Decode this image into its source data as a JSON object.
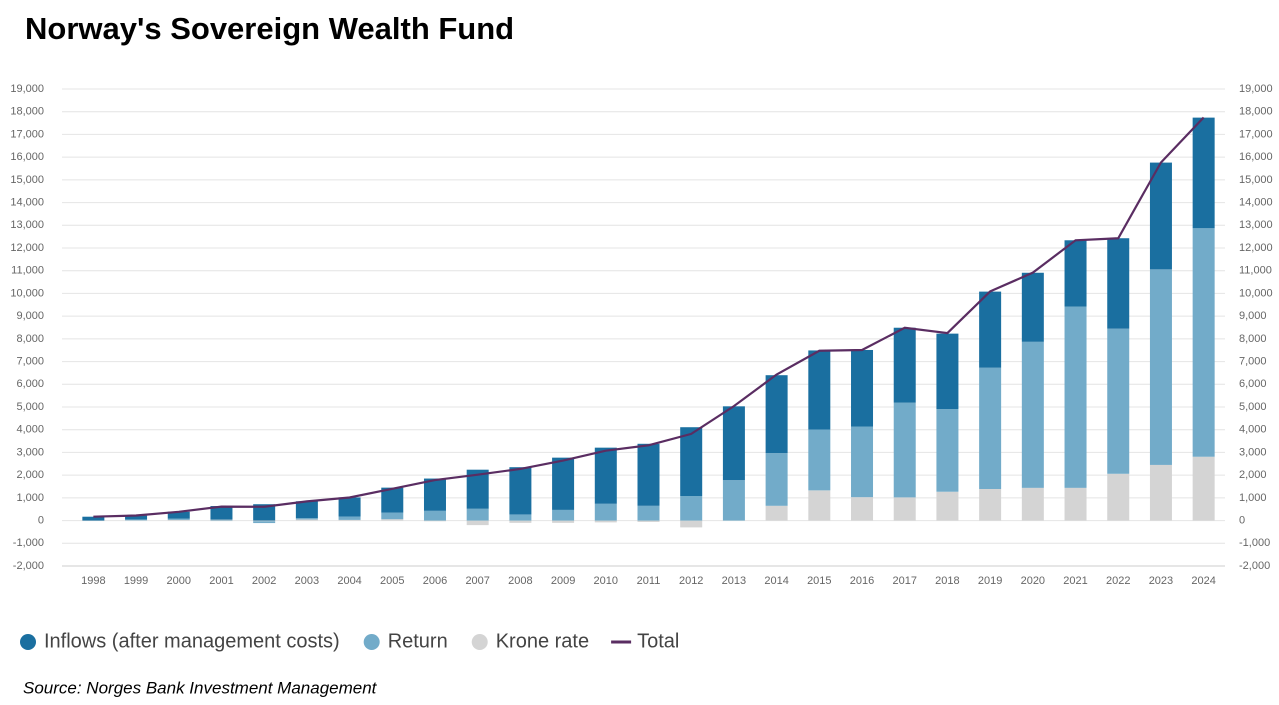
{
  "chart_data": {
    "type": "stacked-bar-line",
    "title": "Norway's Sovereign Wealth Fund",
    "source": "Source: Norges Bank Investment Management",
    "categories": [
      "1998",
      "1999",
      "2000",
      "2001",
      "2002",
      "2003",
      "2004",
      "2005",
      "2006",
      "2007",
      "2008",
      "2009",
      "2010",
      "2011",
      "2012",
      "2013",
      "2014",
      "2015",
      "2016",
      "2017",
      "2018",
      "2019",
      "2020",
      "2021",
      "2022",
      "2023",
      "2024"
    ],
    "series": [
      {
        "name": "Krone rate",
        "color": "#d4d4d4",
        "values": [
          0,
          10,
          30,
          40,
          -30,
          50,
          30,
          60,
          -30,
          -200,
          -100,
          -100,
          -80,
          -60,
          -300,
          0,
          650,
          1330,
          1030,
          1020,
          1270,
          1390,
          1440,
          1440,
          2060,
          2450,
          2810
        ]
      },
      {
        "name": "Return",
        "color": "#72abc9",
        "values": [
          0,
          40,
          60,
          -20,
          -80,
          60,
          150,
          290,
          430,
          520,
          270,
          470,
          740,
          650,
          1080,
          1780,
          2320,
          2680,
          3110,
          4170,
          3640,
          5340,
          6430,
          7980,
          6390,
          8610,
          10060
        ]
      },
      {
        "name": "Inflows (after management costs)",
        "color": "#1a6fa0",
        "values": [
          170,
          170,
          300,
          600,
          720,
          740,
          840,
          1100,
          1420,
          1720,
          2080,
          2300,
          2470,
          2730,
          3030,
          3250,
          3430,
          3480,
          3370,
          3300,
          3320,
          3350,
          3040,
          2920,
          3980,
          4700,
          4870
        ]
      }
    ],
    "line": {
      "name": "Total",
      "color": "#5a2d62",
      "values": [
        172,
        222,
        386,
        614,
        609,
        845,
        1016,
        1399,
        1784,
        2019,
        2275,
        2640,
        3077,
        3312,
        3816,
        5038,
        6431,
        7475,
        7510,
        8488,
        8256,
        10088,
        10914,
        12340,
        12429,
        15765,
        17745
      ]
    },
    "legend_order": [
      2,
      1,
      0
    ],
    "ylim": [
      -2000,
      19000
    ],
    "yticks": [
      {
        "value": -2000,
        "label": "-2,000"
      },
      {
        "value": -1000,
        "label": "-1,000"
      },
      0,
      {
        "value": 1000,
        "label": "1,000"
      },
      {
        "value": 2000,
        "label": "2,000"
      },
      {
        "value": 3000,
        "label": "3,000"
      },
      {
        "value": 4000,
        "label": "4,000"
      },
      {
        "value": 5000,
        "label": "5,000"
      },
      {
        "value": 6000,
        "label": "6,000"
      },
      {
        "value": 7000,
        "label": "7,000"
      },
      {
        "value": 8000,
        "label": "8,000"
      },
      {
        "value": 9000,
        "label": "9,000"
      },
      {
        "value": 10000,
        "label": "10,000"
      },
      {
        "value": 11000,
        "label": "11,000"
      },
      {
        "value": 12000,
        "label": "12,000"
      },
      {
        "value": 13000,
        "label": "13,000"
      },
      {
        "value": 14000,
        "label": "14,000"
      },
      {
        "value": 15000,
        "label": "15,000"
      },
      {
        "value": 16000,
        "label": "16,000"
      },
      {
        "value": 17000,
        "label": "17,000"
      },
      {
        "value": 18000,
        "label": "18,000"
      },
      {
        "value": 19000,
        "label": "19,000"
      }
    ],
    "grid": true
  }
}
